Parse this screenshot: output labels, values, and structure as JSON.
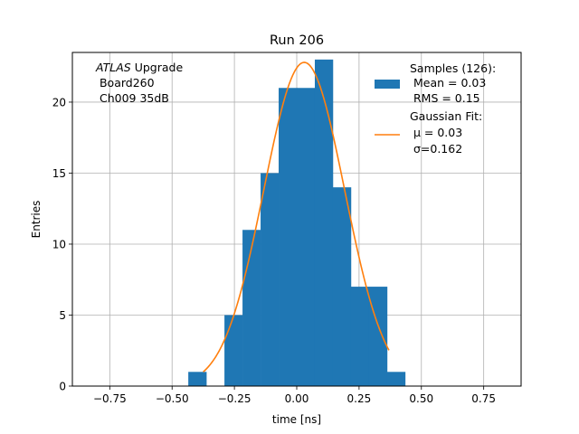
{
  "chart_data": {
    "type": "bar",
    "title": "Run 206",
    "xlabel": "time [ns]",
    "ylabel": "Entries",
    "xlim": [
      -0.9,
      0.9
    ],
    "ylim": [
      0,
      23.5
    ],
    "grid": true,
    "bin_width": 0.0725,
    "bin_starts": [
      -0.435,
      -0.29,
      -0.2175,
      -0.145,
      -0.0725,
      0.0,
      0.0725,
      0.145,
      0.2175,
      0.29,
      0.3625
    ],
    "values": [
      1,
      5,
      11,
      15,
      21,
      21,
      23,
      14,
      7,
      7,
      1
    ],
    "xticks": [
      -0.75,
      -0.5,
      -0.25,
      0.0,
      0.25,
      0.5,
      0.75
    ],
    "xtick_labels": [
      "−0.75",
      "−0.50",
      "−0.25",
      "0.00",
      "0.25",
      "0.50",
      "0.75"
    ],
    "yticks": [
      0,
      5,
      10,
      15,
      20
    ],
    "ytick_labels": [
      "0",
      "5",
      "10",
      "15",
      "20"
    ],
    "gaussian_fit": {
      "amplitude": 22.8,
      "mu": 0.03,
      "sigma": 0.162,
      "x_range": [
        -0.375,
        0.37
      ]
    },
    "annotation": {
      "line1_italic": "ATLAS",
      "line1_rest": " Upgrade",
      "line2": " Board260",
      "line3": " Ch009 35dB"
    },
    "legend": {
      "placement": "top-right",
      "histogram": {
        "name": "Samples (126):",
        "mean": " Mean = 0.03",
        "rms": " RMS = 0.15"
      },
      "fit": {
        "name": "Gaussian Fit:",
        "mu": " μ = 0.03",
        "sigma": " σ=0.162"
      }
    },
    "colors": {
      "bars": "#1f77b4",
      "fit": "#ff7f0e",
      "grid": "#b0b0b0",
      "axes": "#000000"
    }
  }
}
